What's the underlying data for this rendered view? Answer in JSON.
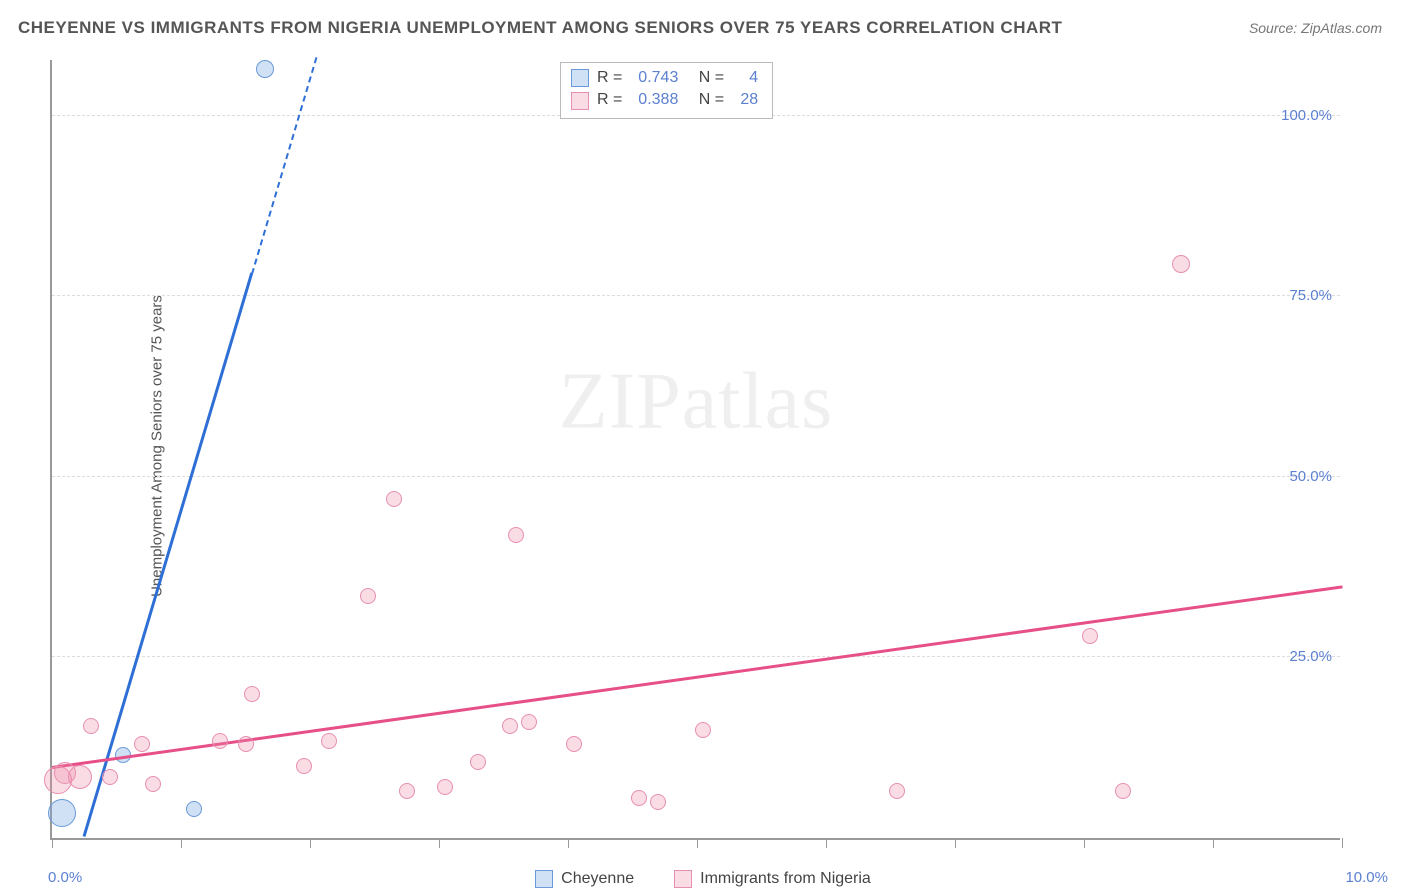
{
  "title": "CHEYENNE VS IMMIGRANTS FROM NIGERIA UNEMPLOYMENT AMONG SENIORS OVER 75 YEARS CORRELATION CHART",
  "source": "Source: ZipAtlas.com",
  "ylabel": "Unemployment Among Seniors over 75 years",
  "watermark_a": "ZIP",
  "watermark_b": "atlas",
  "chart": {
    "type": "scatter",
    "xlim": [
      0,
      10
    ],
    "ylim": [
      0,
      108
    ],
    "x_ticks": [
      0,
      1,
      2,
      3,
      4,
      5,
      6,
      7,
      8,
      9,
      10
    ],
    "x_tick_labels": {
      "0": "0.0%",
      "10": "10.0%"
    },
    "y_gridlines": [
      25,
      50,
      75,
      100
    ],
    "y_tick_labels": {
      "25": "25.0%",
      "50": "50.0%",
      "75": "75.0%",
      "100": "100.0%"
    },
    "background_color": "#ffffff",
    "grid_color": "#dddddd",
    "axis_color": "#999999",
    "tick_label_color": "#5b7fd1",
    "series": [
      {
        "name": "Cheyenne",
        "fill": "rgba(120,165,225,0.35)",
        "stroke": "#6a9ad8",
        "trend_color": "#2e6fd6",
        "R": "0.743",
        "N": "4",
        "trend": {
          "x1": 0.25,
          "y1": 0,
          "x2": 1.55,
          "y2": 78
        },
        "trend_dash": {
          "x1": 1.55,
          "y1": 78,
          "x2": 2.05,
          "y2": 108
        },
        "points": [
          {
            "x": 0.08,
            "y": 3.5,
            "r": 14
          },
          {
            "x": 0.55,
            "y": 11.5,
            "r": 8
          },
          {
            "x": 1.1,
            "y": 4.0,
            "r": 8
          },
          {
            "x": 1.65,
            "y": 106.5,
            "r": 9
          }
        ]
      },
      {
        "name": "Immigrants from Nigeria",
        "fill": "rgba(240,140,170,0.30)",
        "stroke": "#e78fb0",
        "trend_color": "#e64f88",
        "R": "0.388",
        "N": "28",
        "trend": {
          "x1": 0.0,
          "y1": 9.5,
          "x2": 10.0,
          "y2": 34.5
        },
        "points": [
          {
            "x": 0.05,
            "y": 8.0,
            "r": 14
          },
          {
            "x": 0.1,
            "y": 9.0,
            "r": 11
          },
          {
            "x": 0.22,
            "y": 8.5,
            "r": 12
          },
          {
            "x": 0.3,
            "y": 15.5,
            "r": 8
          },
          {
            "x": 0.45,
            "y": 8.5,
            "r": 8
          },
          {
            "x": 0.7,
            "y": 13.0,
            "r": 8
          },
          {
            "x": 0.78,
            "y": 7.5,
            "r": 8
          },
          {
            "x": 1.3,
            "y": 13.5,
            "r": 8
          },
          {
            "x": 1.5,
            "y": 13.0,
            "r": 8
          },
          {
            "x": 1.55,
            "y": 20.0,
            "r": 8
          },
          {
            "x": 1.95,
            "y": 10.0,
            "r": 8
          },
          {
            "x": 2.15,
            "y": 13.5,
            "r": 8
          },
          {
            "x": 2.45,
            "y": 33.5,
            "r": 8
          },
          {
            "x": 2.65,
            "y": 47.0,
            "r": 8
          },
          {
            "x": 2.75,
            "y": 6.5,
            "r": 8
          },
          {
            "x": 3.05,
            "y": 7.0,
            "r": 8
          },
          {
            "x": 3.3,
            "y": 10.5,
            "r": 8
          },
          {
            "x": 3.55,
            "y": 15.5,
            "r": 8
          },
          {
            "x": 3.6,
            "y": 42.0,
            "r": 8
          },
          {
            "x": 3.7,
            "y": 16.0,
            "r": 8
          },
          {
            "x": 4.05,
            "y": 13.0,
            "r": 8
          },
          {
            "x": 4.55,
            "y": 5.5,
            "r": 8
          },
          {
            "x": 4.7,
            "y": 5.0,
            "r": 8
          },
          {
            "x": 5.05,
            "y": 15.0,
            "r": 8
          },
          {
            "x": 6.55,
            "y": 6.5,
            "r": 8
          },
          {
            "x": 8.05,
            "y": 28.0,
            "r": 8
          },
          {
            "x": 8.3,
            "y": 6.5,
            "r": 8
          },
          {
            "x": 8.75,
            "y": 79.5,
            "r": 9
          }
        ]
      }
    ]
  },
  "legend": {
    "a": "Cheyenne",
    "b": "Immigrants from Nigeria"
  },
  "stats_labels": {
    "R": "R =",
    "N": "N ="
  }
}
